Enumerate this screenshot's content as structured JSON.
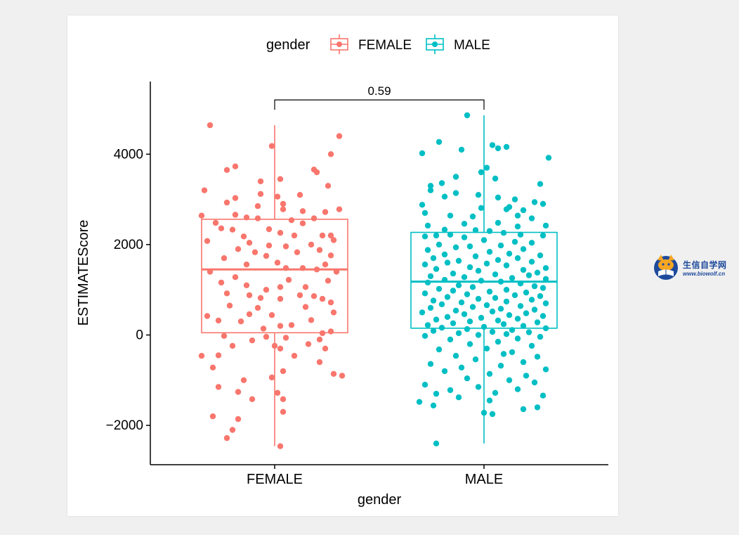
{
  "chart_data": {
    "type": "boxplot",
    "xlabel": "gender",
    "ylabel": "ESTIMATEScore",
    "categories": [
      "FEMALE",
      "MALE"
    ],
    "ylim": [
      -2850,
      5600
    ],
    "yticks": [
      -2000,
      0,
      2000,
      4000
    ],
    "yticks_text": [
      "−2000",
      "0",
      "2000",
      "4000"
    ],
    "legend": {
      "title": "gender",
      "position": "top",
      "entries": [
        "FEMALE",
        "MALE"
      ]
    },
    "colors": {
      "FEMALE": "#f8766d",
      "MALE": "#00bfc4"
    },
    "comparison": {
      "groups": [
        "FEMALE",
        "MALE"
      ],
      "label": "0.59",
      "y": 5200
    },
    "series": [
      {
        "name": "FEMALE",
        "box": {
          "min": -2460,
          "q1": 50,
          "median": 1450,
          "q3": 2560,
          "max": 4640
        },
        "points": [
          [
            -0.23,
            4640
          ],
          [
            0.23,
            4400
          ],
          [
            -0.01,
            4180
          ],
          [
            0.2,
            4000
          ],
          [
            -0.14,
            3730
          ],
          [
            -0.17,
            3650
          ],
          [
            0.14,
            3660
          ],
          [
            0.15,
            3600
          ],
          [
            0.02,
            3450
          ],
          [
            -0.05,
            3400
          ],
          [
            0.19,
            3300
          ],
          [
            -0.25,
            3200
          ],
          [
            -0.05,
            3120
          ],
          [
            0.01,
            3060
          ],
          [
            -0.14,
            3030
          ],
          [
            0.09,
            3100
          ],
          [
            -0.17,
            2930
          ],
          [
            0.03,
            2900
          ],
          [
            -0.06,
            2850
          ],
          [
            0.23,
            2780
          ],
          [
            0.1,
            2740
          ],
          [
            0.03,
            2780
          ],
          [
            0.18,
            2720
          ],
          [
            -0.14,
            2660
          ],
          [
            -0.26,
            2640
          ],
          [
            -0.1,
            2600
          ],
          [
            -0.06,
            2580
          ],
          [
            0.14,
            2580
          ],
          [
            0.06,
            2540
          ],
          [
            -0.21,
            2480
          ],
          [
            0.1,
            2470
          ],
          [
            -0.19,
            2360
          ],
          [
            -0.15,
            2330
          ],
          [
            -0.02,
            2340
          ],
          [
            0.02,
            2260
          ],
          [
            0.2,
            2200
          ],
          [
            -0.11,
            2180
          ],
          [
            0.17,
            2200
          ],
          [
            0.07,
            2200
          ],
          [
            0.21,
            2100
          ],
          [
            -0.24,
            2080
          ],
          [
            -0.09,
            2040
          ],
          [
            0.13,
            2000
          ],
          [
            -0.02,
            1980
          ],
          [
            0.04,
            1960
          ],
          [
            -0.13,
            1900
          ],
          [
            0.16,
            1880
          ],
          [
            0.08,
            1830
          ],
          [
            -0.07,
            1830
          ],
          [
            0.2,
            1760
          ],
          [
            -0.03,
            1750
          ],
          [
            -0.18,
            1700
          ],
          [
            0.01,
            1600
          ],
          [
            0.18,
            1560
          ],
          [
            -0.1,
            1560
          ],
          [
            0.1,
            1480
          ],
          [
            0.04,
            1480
          ],
          [
            0.15,
            1450
          ],
          [
            0.22,
            1400
          ],
          [
            -0.23,
            1400
          ],
          [
            -0.14,
            1280
          ],
          [
            0.05,
            1220
          ],
          [
            0.19,
            1200
          ],
          [
            -0.19,
            1160
          ],
          [
            -0.1,
            1100
          ],
          [
            0.02,
            1060
          ],
          [
            0.11,
            1060
          ],
          [
            -0.03,
            1000
          ],
          [
            -0.17,
            920
          ],
          [
            -0.09,
            880
          ],
          [
            0.09,
            880
          ],
          [
            0.14,
            860
          ],
          [
            -0.05,
            820
          ],
          [
            0.02,
            800
          ],
          [
            0.17,
            800
          ],
          [
            0.2,
            720
          ],
          [
            -0.16,
            650
          ],
          [
            0.11,
            620
          ],
          [
            -0.06,
            600
          ],
          [
            0.21,
            500
          ],
          [
            -0.09,
            460
          ],
          [
            -0.01,
            440
          ],
          [
            -0.24,
            420
          ],
          [
            -0.2,
            320
          ],
          [
            0.13,
            330
          ],
          [
            -0.12,
            300
          ],
          [
            0.06,
            220
          ],
          [
            0.02,
            200
          ],
          [
            -0.04,
            140
          ],
          [
            0.2,
            80
          ],
          [
            0.17,
            40
          ],
          [
            -0.18,
            -20
          ],
          [
            -0.03,
            -40
          ],
          [
            0.04,
            -60
          ],
          [
            0.16,
            -100
          ],
          [
            -0.08,
            -120
          ],
          [
            0.12,
            -200
          ],
          [
            -0.15,
            -240
          ],
          [
            0.0,
            -240
          ],
          [
            0.02,
            -300
          ],
          [
            0.18,
            -300
          ],
          [
            -0.26,
            -460
          ],
          [
            -0.2,
            -450
          ],
          [
            0.07,
            -460
          ],
          [
            0.16,
            -600
          ],
          [
            -0.22,
            -720
          ],
          [
            0.03,
            -800
          ],
          [
            0.21,
            -860
          ],
          [
            0.24,
            -900
          ],
          [
            -0.01,
            -940
          ],
          [
            -0.11,
            -1000
          ],
          [
            -0.2,
            -1150
          ],
          [
            -0.13,
            -1260
          ],
          [
            -0.08,
            -1420
          ],
          [
            0.01,
            -1280
          ],
          [
            0.03,
            -1420
          ],
          [
            0.03,
            -1700
          ],
          [
            -0.22,
            -1800
          ],
          [
            -0.13,
            -1860
          ],
          [
            -0.15,
            -2100
          ],
          [
            -0.17,
            -2280
          ],
          [
            0.02,
            -2460
          ]
        ]
      },
      {
        "name": "MALE",
        "box": {
          "min": -2400,
          "q1": 150,
          "median": 1180,
          "q3": 2270,
          "max": 4860
        },
        "points": [
          [
            -0.06,
            4860
          ],
          [
            -0.16,
            4270
          ],
          [
            0.03,
            4200
          ],
          [
            0.08,
            4160
          ],
          [
            0.05,
            4130
          ],
          [
            -0.08,
            4100
          ],
          [
            -0.22,
            4020
          ],
          [
            0.23,
            3920
          ],
          [
            0.01,
            3700
          ],
          [
            -0.01,
            3600
          ],
          [
            -0.1,
            3500
          ],
          [
            0.04,
            3460
          ],
          [
            -0.15,
            3360
          ],
          [
            -0.19,
            3300
          ],
          [
            0.2,
            3340
          ],
          [
            -0.19,
            3200
          ],
          [
            -0.1,
            3140
          ],
          [
            -0.14,
            3060
          ],
          [
            -0.02,
            3100
          ],
          [
            0.05,
            3040
          ],
          [
            0.11,
            3000
          ],
          [
            0.18,
            2940
          ],
          [
            0.21,
            2900
          ],
          [
            -0.22,
            2880
          ],
          [
            0.09,
            2830
          ],
          [
            -0.01,
            2810
          ],
          [
            0.08,
            2780
          ],
          [
            0.14,
            2760
          ],
          [
            -0.21,
            2700
          ],
          [
            0.12,
            2640
          ],
          [
            -0.12,
            2640
          ],
          [
            -0.04,
            2620
          ],
          [
            0.17,
            2580
          ],
          [
            0.05,
            2480
          ],
          [
            -0.07,
            2460
          ],
          [
            -0.2,
            2420
          ],
          [
            0.12,
            2400
          ],
          [
            0.22,
            2420
          ],
          [
            -0.14,
            2330
          ],
          [
            -0.03,
            2320
          ],
          [
            0.02,
            2300
          ],
          [
            0.07,
            2260
          ],
          [
            -0.12,
            2220
          ],
          [
            -0.17,
            2200
          ],
          [
            0.13,
            2220
          ],
          [
            0.21,
            2200
          ],
          [
            -0.21,
            2180
          ],
          [
            -0.07,
            2160
          ],
          [
            0.0,
            2100
          ],
          [
            0.11,
            2060
          ],
          [
            0.17,
            2040
          ],
          [
            -0.16,
            2000
          ],
          [
            0.06,
            1980
          ],
          [
            -0.05,
            1960
          ],
          [
            -0.1,
            1940
          ],
          [
            0.14,
            1900
          ],
          [
            -0.2,
            1880
          ],
          [
            0.02,
            1840
          ],
          [
            0.09,
            1800
          ],
          [
            -0.14,
            1780
          ],
          [
            0.2,
            1760
          ],
          [
            -0.03,
            1740
          ],
          [
            -0.18,
            1700
          ],
          [
            0.12,
            1700
          ],
          [
            0.05,
            1660
          ],
          [
            -0.09,
            1640
          ],
          [
            0.17,
            1620
          ],
          [
            -0.13,
            1600
          ],
          [
            0.01,
            1580
          ],
          [
            -0.21,
            1560
          ],
          [
            0.08,
            1540
          ],
          [
            -0.05,
            1500
          ],
          [
            0.22,
            1480
          ],
          [
            -0.17,
            1460
          ],
          [
            0.14,
            1440
          ],
          [
            -0.02,
            1420
          ],
          [
            0.19,
            1380
          ],
          [
            -0.11,
            1360
          ],
          [
            0.04,
            1340
          ],
          [
            0.16,
            1320
          ],
          [
            -0.19,
            1300
          ],
          [
            -0.07,
            1280
          ],
          [
            0.1,
            1260
          ],
          [
            0.22,
            1240
          ],
          [
            -0.14,
            1220
          ],
          [
            -0.01,
            1200
          ],
          [
            0.06,
            1180
          ],
          [
            -0.2,
            1160
          ],
          [
            0.13,
            1140
          ],
          [
            -0.09,
            1100
          ],
          [
            0.18,
            1080
          ],
          [
            -0.04,
            1060
          ],
          [
            0.21,
            1040
          ],
          [
            -0.16,
            1020
          ],
          [
            0.08,
            1000
          ],
          [
            -0.11,
            980
          ],
          [
            0.02,
            960
          ],
          [
            0.15,
            940
          ],
          [
            -0.21,
            920
          ],
          [
            -0.06,
            900
          ],
          [
            0.11,
            880
          ],
          [
            0.2,
            860
          ],
          [
            -0.13,
            840
          ],
          [
            0.04,
            820
          ],
          [
            -0.02,
            800
          ],
          [
            0.17,
            780
          ],
          [
            -0.18,
            760
          ],
          [
            0.08,
            740
          ],
          [
            -0.08,
            720
          ],
          [
            0.22,
            700
          ],
          [
            -0.15,
            680
          ],
          [
            0.01,
            660
          ],
          [
            0.13,
            640
          ],
          [
            -0.04,
            620
          ],
          [
            -0.19,
            600
          ],
          [
            0.06,
            580
          ],
          [
            0.18,
            560
          ],
          [
            -0.1,
            540
          ],
          [
            0.03,
            520
          ],
          [
            -0.22,
            500
          ],
          [
            0.15,
            480
          ],
          [
            -0.07,
            460
          ],
          [
            0.09,
            440
          ],
          [
            0.21,
            420
          ],
          [
            -0.13,
            400
          ],
          [
            -0.01,
            380
          ],
          [
            0.12,
            360
          ],
          [
            -0.17,
            340
          ],
          [
            0.05,
            320
          ],
          [
            -0.05,
            300
          ],
          [
            0.19,
            280
          ],
          [
            -0.11,
            260
          ],
          [
            0.07,
            240
          ],
          [
            -0.2,
            220
          ],
          [
            0.14,
            200
          ],
          [
            0.0,
            180
          ],
          [
            -0.15,
            160
          ],
          [
            0.22,
            150
          ],
          [
            -0.06,
            130
          ],
          [
            0.1,
            110
          ],
          [
            -0.18,
            90
          ],
          [
            0.03,
            70
          ],
          [
            0.16,
            60
          ],
          [
            -0.09,
            40
          ],
          [
            0.08,
            20
          ],
          [
            -0.02,
            0
          ],
          [
            -0.21,
            -20
          ],
          [
            0.2,
            -40
          ],
          [
            0.12,
            -80
          ],
          [
            -0.12,
            -100
          ],
          [
            0.05,
            -150
          ],
          [
            -0.05,
            -200
          ],
          [
            0.17,
            -240
          ],
          [
            0.01,
            -300
          ],
          [
            -0.16,
            -320
          ],
          [
            0.1,
            -380
          ],
          [
            0.07,
            -420
          ],
          [
            -0.1,
            -460
          ],
          [
            0.19,
            -480
          ],
          [
            -0.03,
            -540
          ],
          [
            0.14,
            -600
          ],
          [
            -0.19,
            -640
          ],
          [
            0.06,
            -680
          ],
          [
            -0.08,
            -720
          ],
          [
            0.22,
            -760
          ],
          [
            -0.14,
            -800
          ],
          [
            0.02,
            -860
          ],
          [
            0.15,
            -900
          ],
          [
            -0.06,
            -960
          ],
          [
            0.09,
            -1000
          ],
          [
            0.18,
            -1050
          ],
          [
            -0.21,
            -1100
          ],
          [
            -0.02,
            -1150
          ],
          [
            0.12,
            -1200
          ],
          [
            -0.12,
            -1220
          ],
          [
            0.04,
            -1280
          ],
          [
            -0.17,
            -1300
          ],
          [
            0.21,
            -1340
          ],
          [
            -0.09,
            -1380
          ],
          [
            0.02,
            -1450
          ],
          [
            -0.23,
            -1480
          ],
          [
            -0.18,
            -1560
          ],
          [
            0.19,
            -1600
          ],
          [
            0.14,
            -1640
          ],
          [
            0.0,
            -1720
          ],
          [
            0.03,
            -1750
          ],
          [
            -0.17,
            -2400
          ]
        ]
      }
    ]
  },
  "watermark": {
    "text": "生信自学网",
    "url": "www.biowolf.cn"
  }
}
